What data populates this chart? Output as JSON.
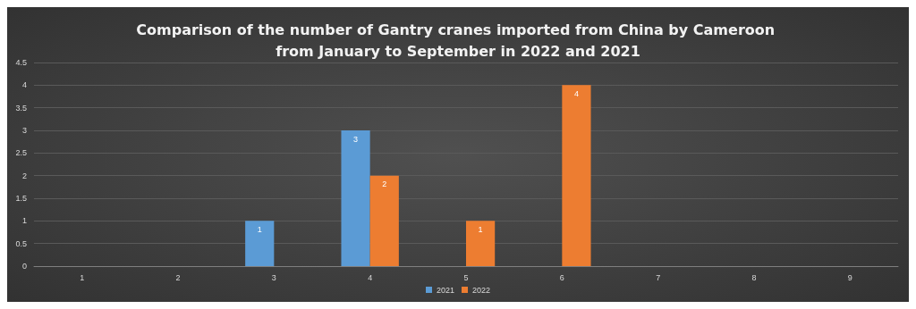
{
  "chart_data": {
    "type": "bar",
    "title": "Comparison of the number of Gantry cranes imported from China by Cameroon from January to September in 2022 and 2021",
    "categories": [
      "1",
      "2",
      "3",
      "4",
      "5",
      "6",
      "7",
      "8",
      "9"
    ],
    "series": [
      {
        "name": "2021",
        "color": "#5b9bd5",
        "values": [
          0,
          0,
          1,
          3,
          0,
          0,
          0,
          0,
          0
        ],
        "value_labels": [
          null,
          null,
          "1",
          "3",
          null,
          null,
          null,
          null,
          null
        ]
      },
      {
        "name": "2022",
        "color": "#ed7d31",
        "values": [
          0,
          0,
          0,
          2,
          1,
          4,
          0,
          0,
          0
        ],
        "value_labels": [
          null,
          null,
          null,
          "2",
          "1",
          "4",
          null,
          null,
          null
        ]
      }
    ],
    "ylim": [
      0,
      4.5
    ],
    "yticks": [
      0,
      0.5,
      1,
      1.5,
      2,
      2.5,
      3,
      3.5,
      4,
      4.5
    ],
    "grid": "y",
    "legend": "bottom"
  }
}
